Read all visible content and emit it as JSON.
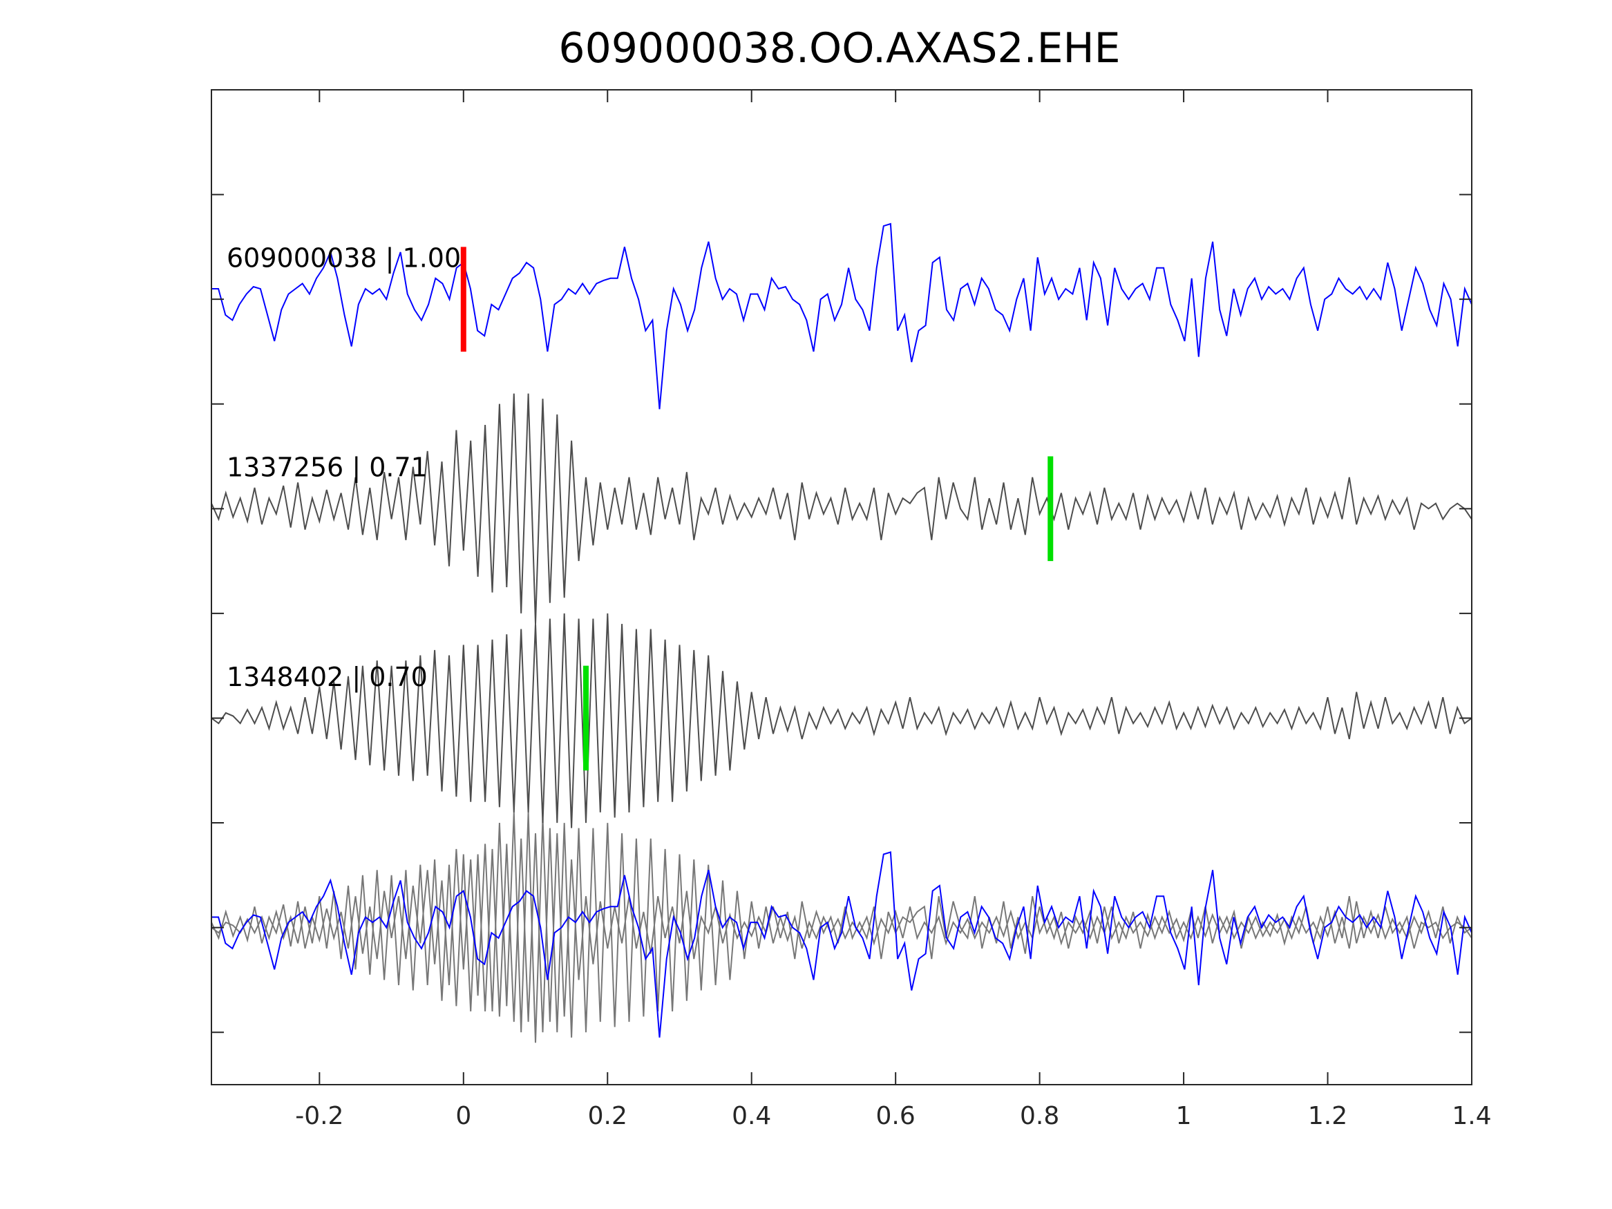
{
  "chart_data": {
    "type": "line",
    "title": "609000038.OO.AXAS2.EHE",
    "xlabel": "",
    "ylabel": "",
    "xlim": [
      -0.35,
      1.4
    ],
    "ylim": [
      -7.5,
      2
    ],
    "grid": false,
    "xticks": [
      -0.2,
      0,
      0.2,
      0.4,
      0.6,
      0.8,
      1,
      1.2,
      1.4
    ],
    "xtick_labels": [
      "-0.2",
      "0",
      "0.2",
      "0.4",
      "0.6",
      "0.8",
      "1",
      "1.2",
      "1.4"
    ],
    "yticks": [
      -7,
      -6,
      -5,
      -4,
      -3,
      -2,
      -1,
      0,
      1
    ],
    "t_start": -0.35,
    "t_end": 1.4,
    "series": [
      {
        "name": "609000038",
        "label": "609000038 | 1.00",
        "offset": 0,
        "color": "#0000ff",
        "pick": {
          "t": 0.0,
          "color": "#ff0000"
        },
        "values": [
          0.1,
          0.1,
          -0.15,
          -0.2,
          -0.05,
          0.05,
          0.12,
          0.1,
          -0.15,
          -0.4,
          -0.1,
          0.05,
          0.1,
          0.15,
          0.05,
          0.2,
          0.3,
          0.45,
          0.2,
          -0.15,
          -0.45,
          -0.05,
          0.1,
          0.05,
          0.1,
          0.0,
          0.25,
          0.45,
          0.05,
          -0.1,
          -0.2,
          -0.05,
          0.2,
          0.15,
          0.0,
          0.3,
          0.35,
          0.1,
          -0.3,
          -0.35,
          -0.05,
          -0.1,
          0.05,
          0.2,
          0.25,
          0.35,
          0.3,
          0.0,
          -0.5,
          -0.05,
          0.0,
          0.1,
          0.05,
          0.15,
          0.05,
          0.15,
          0.18,
          0.2,
          0.2,
          0.5,
          0.2,
          0.0,
          -0.3,
          -0.2,
          -1.05,
          -0.3,
          0.1,
          -0.05,
          -0.3,
          -0.1,
          0.3,
          0.55,
          0.2,
          0.0,
          0.1,
          0.05,
          -0.2,
          0.05,
          0.05,
          -0.1,
          0.2,
          0.1,
          0.12,
          0.0,
          -0.05,
          -0.2,
          -0.5,
          0.0,
          0.05,
          -0.2,
          -0.05,
          0.3,
          0.0,
          -0.1,
          -0.3,
          0.3,
          0.7,
          0.72,
          -0.3,
          -0.15,
          -0.6,
          -0.3,
          -0.25,
          0.35,
          0.4,
          -0.1,
          -0.2,
          0.1,
          0.15,
          -0.05,
          0.2,
          0.1,
          -0.1,
          -0.15,
          -0.3,
          0.0,
          0.2,
          -0.3,
          0.4,
          0.05,
          0.2,
          0.0,
          0.1,
          0.05,
          0.3,
          -0.2,
          0.35,
          0.2,
          -0.25,
          0.3,
          0.1,
          0.0,
          0.1,
          0.15,
          0.0,
          0.3,
          0.3,
          -0.05,
          -0.2,
          -0.4,
          0.2,
          -0.55,
          0.2,
          0.55,
          -0.1,
          -0.35,
          0.1,
          -0.15,
          0.1,
          0.2,
          0.0,
          0.12,
          0.05,
          0.1,
          0.0,
          0.2,
          0.3,
          -0.05,
          -0.3,
          0.0,
          0.05,
          0.2,
          0.1,
          0.05,
          0.12,
          0.0,
          0.1,
          0.0,
          0.35,
          0.1,
          -0.3,
          0.0,
          0.3,
          0.15,
          -0.1,
          -0.25,
          0.15,
          0.0,
          -0.45,
          0.1,
          -0.05
        ]
      },
      {
        "name": "1337256",
        "label": "1337256 | 0.71",
        "offset": -2,
        "color": "#4d4d4d",
        "pick": {
          "t": 0.815,
          "color": "#00e000"
        },
        "values": [
          0.05,
          -0.1,
          0.15,
          -0.08,
          0.1,
          -0.12,
          0.2,
          -0.15,
          0.1,
          -0.05,
          0.22,
          -0.18,
          0.25,
          -0.2,
          0.1,
          -0.12,
          0.18,
          -0.1,
          0.15,
          -0.2,
          0.3,
          -0.25,
          0.2,
          -0.3,
          0.35,
          -0.1,
          0.3,
          -0.3,
          0.4,
          -0.15,
          0.55,
          -0.35,
          0.45,
          -0.55,
          0.75,
          -0.4,
          0.65,
          -0.65,
          0.8,
          -0.8,
          1.0,
          -0.75,
          1.1,
          -1.0,
          1.1,
          -1.1,
          1.05,
          -0.9,
          0.9,
          -0.85,
          0.65,
          -0.5,
          0.3,
          -0.35,
          0.25,
          -0.2,
          0.2,
          -0.15,
          0.3,
          -0.2,
          0.15,
          -0.25,
          0.3,
          -0.1,
          0.2,
          -0.15,
          0.35,
          -0.3,
          0.1,
          -0.05,
          0.2,
          -0.15,
          0.12,
          -0.1,
          0.05,
          -0.08,
          0.1,
          -0.05,
          0.2,
          -0.1,
          0.15,
          -0.3,
          0.25,
          -0.1,
          0.15,
          -0.05,
          0.1,
          -0.15,
          0.2,
          -0.1,
          0.05,
          -0.1,
          0.2,
          -0.3,
          0.15,
          -0.05,
          0.1,
          0.05,
          0.15,
          0.2,
          -0.3,
          0.3,
          -0.1,
          0.25,
          0.0,
          -0.1,
          0.3,
          -0.2,
          0.1,
          -0.15,
          0.25,
          -0.2,
          0.1,
          -0.25,
          0.3,
          -0.05,
          0.1,
          -0.1,
          0.15,
          -0.2,
          0.1,
          -0.05,
          0.15,
          -0.15,
          0.2,
          -0.1,
          0.05,
          -0.1,
          0.15,
          -0.2,
          0.12,
          -0.1,
          0.1,
          -0.05,
          0.08,
          -0.12,
          0.15,
          -0.1,
          0.2,
          -0.15,
          0.1,
          -0.05,
          0.15,
          -0.2,
          0.1,
          -0.1,
          0.05,
          -0.08,
          0.12,
          -0.15,
          0.1,
          -0.05,
          0.2,
          -0.15,
          0.1,
          -0.08,
          0.15,
          -0.1,
          0.3,
          -0.15,
          0.1,
          -0.05,
          0.12,
          -0.1,
          0.08,
          -0.05,
          0.1,
          -0.2,
          0.05,
          0.0,
          0.05,
          -0.1,
          0.0,
          0.05,
          0.0,
          -0.1
        ]
      },
      {
        "name": "1348402",
        "label": "1348402 | 0.70",
        "offset": -4,
        "color": "#4d4d4d",
        "pick": {
          "t": 0.17,
          "color": "#00e000"
        },
        "values": [
          0.0,
          -0.05,
          0.05,
          0.02,
          -0.05,
          0.08,
          -0.05,
          0.1,
          -0.1,
          0.15,
          -0.1,
          0.1,
          -0.15,
          0.2,
          -0.15,
          0.3,
          -0.2,
          0.35,
          -0.3,
          0.4,
          -0.4,
          0.5,
          -0.45,
          0.55,
          -0.5,
          0.5,
          -0.55,
          0.55,
          -0.6,
          0.6,
          -0.55,
          0.65,
          -0.7,
          0.6,
          -0.75,
          0.7,
          -0.8,
          0.7,
          -0.8,
          0.75,
          -0.85,
          0.8,
          -0.9,
          0.85,
          -0.9,
          0.9,
          -1.0,
          0.95,
          -1.0,
          1.0,
          -1.05,
          0.95,
          -1.0,
          0.95,
          -0.9,
          1.0,
          -0.95,
          0.9,
          -0.9,
          0.85,
          -0.85,
          0.85,
          -0.8,
          0.75,
          -0.8,
          0.7,
          -0.7,
          0.65,
          -0.6,
          0.6,
          -0.55,
          0.45,
          -0.5,
          0.35,
          -0.3,
          0.25,
          -0.2,
          0.2,
          -0.15,
          0.1,
          -0.12,
          0.1,
          -0.2,
          0.05,
          -0.1,
          0.1,
          -0.05,
          0.08,
          -0.1,
          0.05,
          -0.05,
          0.1,
          -0.15,
          0.08,
          -0.05,
          0.15,
          -0.1,
          0.2,
          -0.1,
          0.05,
          -0.05,
          0.1,
          -0.15,
          0.05,
          -0.05,
          0.08,
          -0.1,
          0.05,
          -0.05,
          0.1,
          -0.08,
          0.15,
          -0.1,
          0.05,
          -0.1,
          0.2,
          -0.05,
          0.1,
          -0.15,
          0.05,
          -0.05,
          0.08,
          -0.1,
          0.1,
          -0.05,
          0.2,
          -0.15,
          0.1,
          -0.05,
          0.05,
          -0.08,
          0.1,
          -0.05,
          0.15,
          -0.1,
          0.05,
          -0.1,
          0.1,
          -0.08,
          0.12,
          -0.05,
          0.1,
          -0.1,
          0.05,
          -0.05,
          0.1,
          -0.08,
          0.05,
          -0.05,
          0.08,
          -0.1,
          0.1,
          -0.05,
          0.05,
          -0.1,
          0.2,
          -0.15,
          0.1,
          -0.2,
          0.25,
          -0.1,
          0.15,
          -0.1,
          0.2,
          -0.05,
          0.05,
          -0.1,
          0.1,
          -0.05,
          0.15,
          -0.1,
          0.2,
          -0.15,
          0.1,
          -0.05,
          0.0
        ]
      }
    ],
    "overlay": {
      "offset": -6,
      "background_color": "#777777"
    }
  }
}
